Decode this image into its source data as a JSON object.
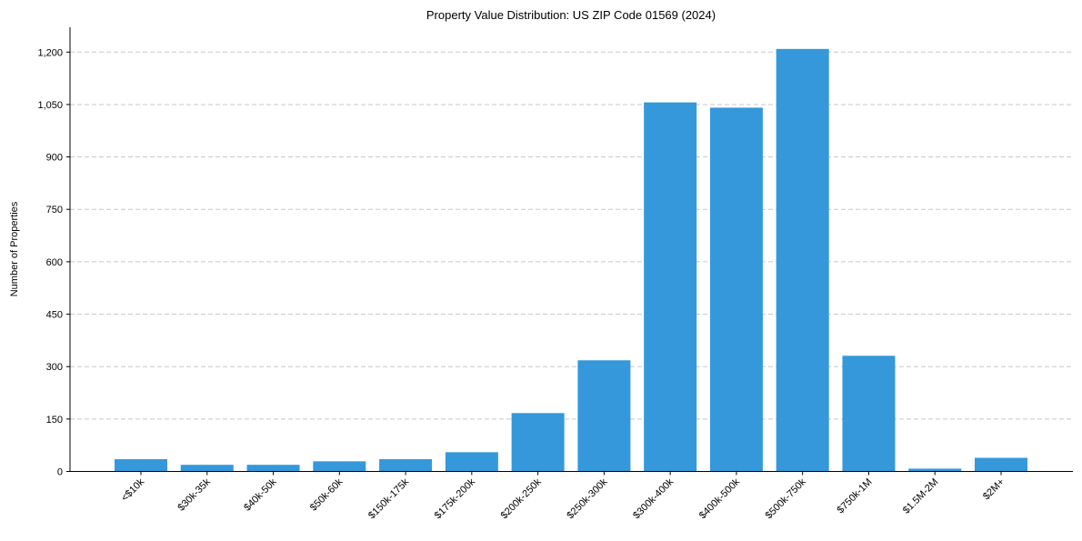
{
  "chart_data": {
    "type": "bar",
    "title": "Property Value Distribution: US ZIP Code 01569 (2024)",
    "xlabel": "",
    "ylabel": "Number of Properties",
    "categories": [
      "<$10k",
      "$30k-35k",
      "$40k-50k",
      "$50k-60k",
      "$150k-175k",
      "$175k-200k",
      "$200k-250k",
      "$250k-300k",
      "$300k-400k",
      "$400k-500k",
      "$500k-750k",
      "$750k-1M",
      "$1.5M-2M",
      "$2M+"
    ],
    "values": [
      35,
      19,
      19,
      29,
      35,
      55,
      167,
      318,
      1056,
      1041,
      1209,
      331,
      8,
      39
    ],
    "ylim": [
      0,
      1271
    ],
    "yticks": [
      0,
      150,
      300,
      450,
      600,
      750,
      900,
      1050,
      1200
    ],
    "ytick_labels": [
      "0",
      "150",
      "300",
      "450",
      "600",
      "750",
      "900",
      "1,050",
      "1,200"
    ],
    "grid": "y, dashed",
    "bar_color": "#3498db"
  }
}
